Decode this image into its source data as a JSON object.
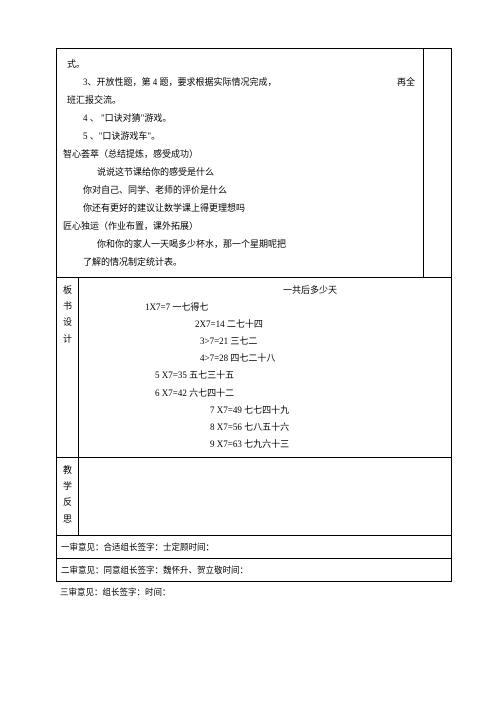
{
  "upper": {
    "line1_a": "式。",
    "line2": "3、开放性题，第 4 题，要求根据实际情况完成，",
    "line2_tail": "再全",
    "line3": "班汇报交流。",
    "line4": "4 、 \"口诀对猜\"游戏。",
    "line5": "5 、\"口诀游戏车\"。",
    "section1_title": "智心荟萃（总结提炼，感受成功）",
    "s1_line1": "说说这节课给你的感受是什么",
    "s1_line2": "你对自己、同学、老师的评价是什么",
    "s1_line3": "你还有更好的建议让数学课上得更理想吗",
    "section2_title": "匠心独运（作业布置，课外拓展）",
    "s2_line1": "你和你的家人一天喝多少杯水，那一个星期呢把",
    "s2_line2": "了解的情况制定统计表。"
  },
  "board": {
    "label_chars": [
      "板",
      "书",
      "设",
      "计"
    ],
    "title": "一共后多少天",
    "lines": [
      "1X7=7 一七得七",
      "2X7=14 二七十四",
      "3>7=21 三七二",
      "4>7=28 四七二十八",
      "5 X7=35 五七三十五",
      "6 X7=42 六七四十二",
      "7 X7=49 七七四十九",
      "8 X7=56 七八五十六",
      "9 X7=63 七九六十三"
    ]
  },
  "reflect": {
    "label_chars": [
      "教",
      "学",
      "反",
      "思"
    ]
  },
  "reviews": {
    "r1": "一审意见：合适组长签字：士定顾时间：",
    "r2": "二审意见：同意组长签字：魏怀升、贺立敬时间：",
    "r3": "三审意见：组长签字：时间："
  },
  "style": {
    "text_color": "#000000",
    "border_color": "#000000",
    "background": "#ffffff",
    "font_size_main": 9,
    "font_size_review": 8.5
  }
}
